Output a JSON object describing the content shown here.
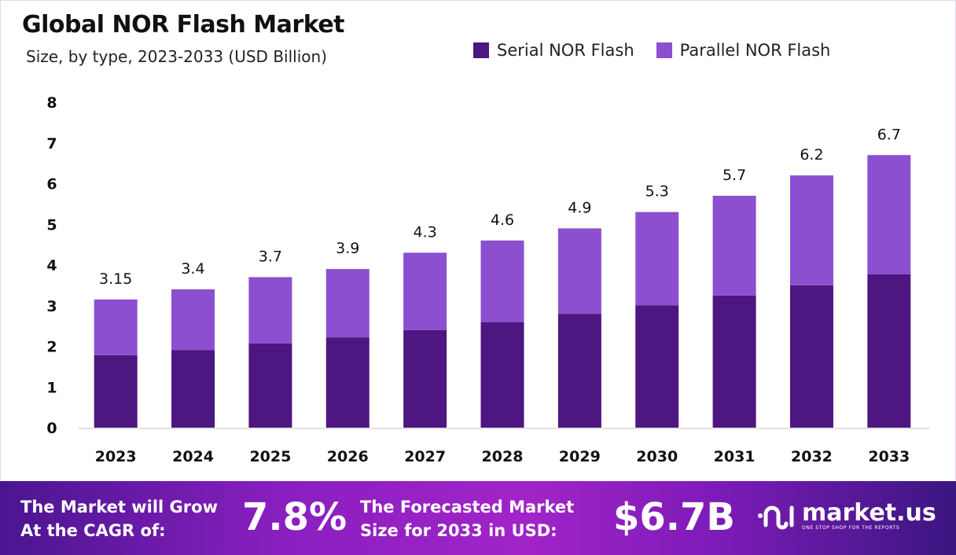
{
  "chart_data": {
    "type": "bar",
    "stacked": true,
    "title": "Global NOR Flash Market",
    "subtitle": "Size, by type, 2023-2033 (USD Billion)",
    "categories": [
      "2023",
      "2024",
      "2025",
      "2026",
      "2027",
      "2028",
      "2029",
      "2030",
      "2031",
      "2032",
      "2033"
    ],
    "series": [
      {
        "name": "Serial NOR Flash",
        "color": "#4e1680",
        "values": [
          1.78,
          1.91,
          2.07,
          2.22,
          2.4,
          2.59,
          2.8,
          3.01,
          3.25,
          3.5,
          3.77
        ]
      },
      {
        "name": "Parallel NOR Flash",
        "color": "#8b4fcf",
        "values": [
          1.37,
          1.49,
          1.63,
          1.68,
          1.9,
          2.01,
          2.1,
          2.29,
          2.45,
          2.7,
          2.93
        ]
      }
    ],
    "totals_labels": [
      "3.15",
      "3.4",
      "3.7",
      "3.9",
      "4.3",
      "4.6",
      "4.9",
      "5.3",
      "5.7",
      "6.2",
      "6.7"
    ],
    "totals": [
      3.15,
      3.4,
      3.7,
      3.9,
      4.3,
      4.6,
      4.9,
      5.3,
      5.7,
      6.2,
      6.7
    ],
    "ylim": [
      0,
      8
    ],
    "yticks": [
      "0",
      "1",
      "2",
      "3",
      "4",
      "5",
      "6",
      "7",
      "8"
    ],
    "grid": false,
    "legend_position": "top-right",
    "xlabel": "",
    "ylabel": ""
  },
  "footer": {
    "cagr_text_1": "The Market will Grow",
    "cagr_text_2": "At the CAGR of:",
    "cagr_value": "7.8%",
    "forecast_text_1": "The Forecasted Market",
    "forecast_text_2": "Size for 2033 in USD:",
    "forecast_value": "$6.7B",
    "logo_name": "market.us",
    "logo_tagline": "ONE STOP SHOP FOR THE REPORTS"
  }
}
